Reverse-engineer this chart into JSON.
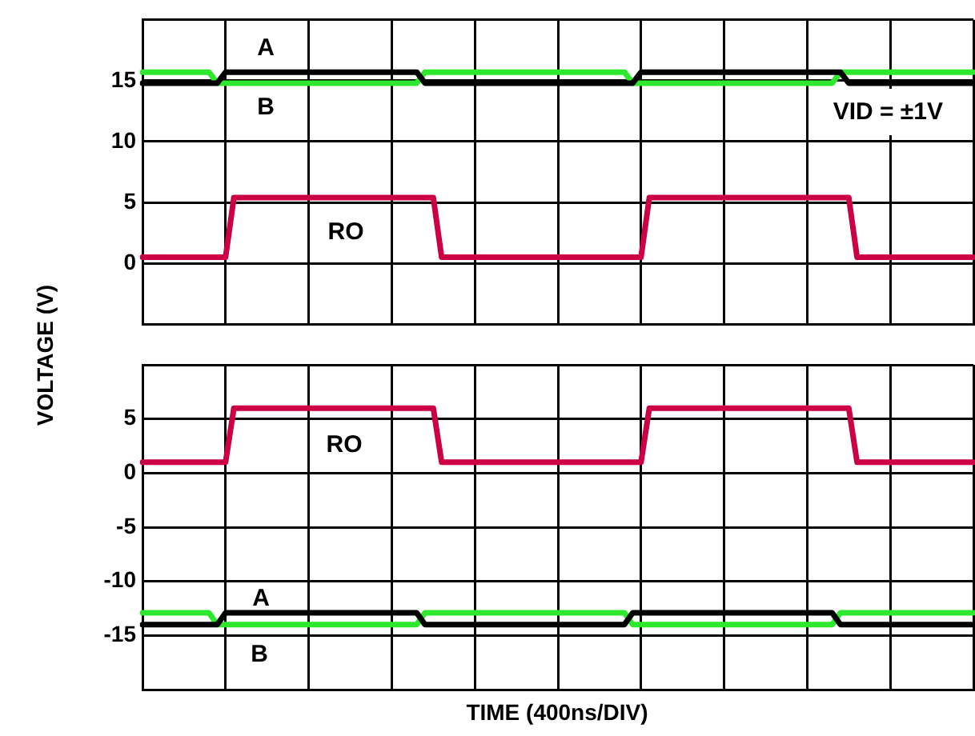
{
  "chart_data": [
    {
      "type": "line",
      "ylabel": "VOLTAGE (V)",
      "categories": [
        null,
        null,
        null,
        null,
        null,
        null,
        null,
        null,
        null,
        null,
        null,
        null,
        null,
        null,
        null,
        null,
        null,
        null,
        null,
        null,
        null,
        null,
        null,
        null,
        null,
        null,
        null,
        null,
        null,
        null,
        null,
        null,
        null,
        null,
        null,
        null,
        null,
        null,
        null,
        null,
        null,
        null,
        null,
        null,
        null,
        null,
        null,
        null,
        null,
        null,
        null,
        null,
        null,
        null,
        null,
        null,
        null,
        null,
        null,
        null,
        null,
        null,
        null,
        null,
        null,
        null,
        null,
        null,
        null,
        null,
        null,
        null,
        null,
        null,
        null,
        null,
        null,
        null,
        null,
        null,
        null,
        null,
        null,
        null,
        null,
        null,
        null,
        null,
        null,
        null,
        null,
        null,
        null,
        null,
        null,
        null,
        null,
        null,
        null,
        null,
        null
      ],
      "ylim": [
        -5,
        20
      ],
      "yticks": [
        {
          "value": -5,
          "label": null
        },
        0,
        5,
        10,
        15,
        {
          "value": 20,
          "label": null
        }
      ],
      "grid": true,
      "tick_labels": "y",
      "legend": false,
      "marker": "none",
      "line_style": "solid",
      "series": [
        {
          "color": "#000000",
          "values": [
            14.8,
            14.8,
            14.8,
            14.8,
            14.8,
            14.8,
            14.8,
            14.8,
            14.8,
            14.8,
            15.7,
            15.7,
            15.7,
            15.7,
            15.7,
            15.7,
            15.7,
            15.7,
            15.7,
            15.7,
            15.7,
            15.7,
            15.7,
            15.7,
            15.7,
            15.7,
            15.7,
            15.7,
            15.7,
            15.7,
            15.7,
            15.7,
            15.7,
            15.7,
            14.8,
            14.8,
            14.8,
            14.8,
            14.8,
            14.8,
            14.8,
            14.8,
            14.8,
            14.8,
            14.8,
            14.8,
            14.8,
            14.8,
            14.8,
            14.8,
            14.8,
            14.8,
            14.8,
            14.8,
            14.8,
            14.8,
            14.8,
            14.8,
            14.8,
            14.8,
            15.7,
            15.7,
            15.7,
            15.7,
            15.7,
            15.7,
            15.7,
            15.7,
            15.7,
            15.7,
            15.7,
            15.7,
            15.7,
            15.7,
            15.7,
            15.7,
            15.7,
            15.7,
            15.7,
            15.7,
            15.7,
            15.7,
            15.7,
            15.7,
            15.7,
            14.8,
            14.8,
            14.8,
            14.8,
            14.8,
            14.8,
            14.8,
            14.8,
            14.8,
            14.8,
            14.8,
            14.8,
            14.8,
            14.8,
            14.8,
            14.8
          ]
        },
        {
          "color": "#2ee82e",
          "values": [
            15.7,
            15.7,
            15.7,
            15.7,
            15.7,
            15.7,
            15.7,
            15.7,
            15.7,
            14.8,
            14.8,
            14.8,
            14.8,
            14.8,
            14.8,
            14.8,
            14.8,
            14.8,
            14.8,
            14.8,
            14.8,
            14.8,
            14.8,
            14.8,
            14.8,
            14.8,
            14.8,
            14.8,
            14.8,
            14.8,
            14.8,
            14.8,
            14.8,
            14.8,
            15.7,
            15.7,
            15.7,
            15.7,
            15.7,
            15.7,
            15.7,
            15.7,
            15.7,
            15.7,
            15.7,
            15.7,
            15.7,
            15.7,
            15.7,
            15.7,
            15.7,
            15.7,
            15.7,
            15.7,
            15.7,
            15.7,
            15.7,
            15.7,
            15.7,
            14.8,
            14.8,
            14.8,
            14.8,
            14.8,
            14.8,
            14.8,
            14.8,
            14.8,
            14.8,
            14.8,
            14.8,
            14.8,
            14.8,
            14.8,
            14.8,
            14.8,
            14.8,
            14.8,
            14.8,
            14.8,
            14.8,
            14.8,
            14.8,
            14.8,
            15.7,
            15.7,
            15.7,
            15.7,
            15.7,
            15.7,
            15.7,
            15.7,
            15.7,
            15.7,
            15.7,
            15.7,
            15.7,
            15.7,
            15.7,
            15.7,
            15.7
          ]
        },
        {
          "color": "#cc0044",
          "values": [
            0.5,
            0.5,
            0.5,
            0.5,
            0.5,
            0.5,
            0.5,
            0.5,
            0.5,
            0.5,
            0.5,
            5.4,
            5.4,
            5.4,
            5.4,
            5.4,
            5.4,
            5.4,
            5.4,
            5.4,
            5.4,
            5.4,
            5.4,
            5.4,
            5.4,
            5.4,
            5.4,
            5.4,
            5.4,
            5.4,
            5.4,
            5.4,
            5.4,
            5.4,
            5.4,
            5.4,
            0.5,
            0.5,
            0.5,
            0.5,
            0.5,
            0.5,
            0.5,
            0.5,
            0.5,
            0.5,
            0.5,
            0.5,
            0.5,
            0.5,
            0.5,
            0.5,
            0.5,
            0.5,
            0.5,
            0.5,
            0.5,
            0.5,
            0.5,
            0.5,
            0.5,
            5.4,
            5.4,
            5.4,
            5.4,
            5.4,
            5.4,
            5.4,
            5.4,
            5.4,
            5.4,
            5.4,
            5.4,
            5.4,
            5.4,
            5.4,
            5.4,
            5.4,
            5.4,
            5.4,
            5.4,
            5.4,
            5.4,
            5.4,
            5.4,
            5.4,
            0.5,
            0.5,
            0.5,
            0.5,
            0.5,
            0.5,
            0.5,
            0.5,
            0.5,
            0.5,
            0.5,
            0.5,
            0.5,
            0.5,
            0.5
          ]
        }
      ],
      "annotations": [
        "A",
        "B",
        "RO",
        "VID = ±1V"
      ]
    },
    {
      "type": "line",
      "xlabel": "TIME (400ns/DIV)",
      "categories": [
        null,
        null,
        null,
        null,
        null,
        null,
        null,
        null,
        null,
        null,
        null,
        null,
        null,
        null,
        null,
        null,
        null,
        null,
        null,
        null,
        null,
        null,
        null,
        null,
        null,
        null,
        null,
        null,
        null,
        null,
        null,
        null,
        null,
        null,
        null,
        null,
        null,
        null,
        null,
        null,
        null,
        null,
        null,
        null,
        null,
        null,
        null,
        null,
        null,
        null,
        null,
        null,
        null,
        null,
        null,
        null,
        null,
        null,
        null,
        null,
        null,
        null,
        null,
        null,
        null,
        null,
        null,
        null,
        null,
        null,
        null,
        null,
        null,
        null,
        null,
        null,
        null,
        null,
        null,
        null,
        null,
        null,
        null,
        null,
        null,
        null,
        null,
        null,
        null,
        null,
        null,
        null,
        null,
        null,
        null,
        null,
        null,
        null,
        null,
        null,
        null
      ],
      "ylim": [
        -20,
        10
      ],
      "yticks": [
        {
          "value": -20,
          "label": null
        },
        -15,
        -10,
        -5,
        0,
        5,
        {
          "value": 10,
          "label": null
        }
      ],
      "grid": true,
      "tick_labels": "y",
      "legend": false,
      "marker": "none",
      "line_style": "solid",
      "series": [
        {
          "color": "#000000",
          "values": [
            -14,
            -14,
            -14,
            -14,
            -14,
            -14,
            -14,
            -14,
            -14,
            -14,
            -12.9,
            -12.9,
            -12.9,
            -12.9,
            -12.9,
            -12.9,
            -12.9,
            -12.9,
            -12.9,
            -12.9,
            -12.9,
            -12.9,
            -12.9,
            -12.9,
            -12.9,
            -12.9,
            -12.9,
            -12.9,
            -12.9,
            -12.9,
            -12.9,
            -12.9,
            -12.9,
            -12.9,
            -14,
            -14,
            -14,
            -14,
            -14,
            -14,
            -14,
            -14,
            -14,
            -14,
            -14,
            -14,
            -14,
            -14,
            -14,
            -14,
            -14,
            -14,
            -14,
            -14,
            -14,
            -14,
            -14,
            -14,
            -14,
            -12.9,
            -12.9,
            -12.9,
            -12.9,
            -12.9,
            -12.9,
            -12.9,
            -12.9,
            -12.9,
            -12.9,
            -12.9,
            -12.9,
            -12.9,
            -12.9,
            -12.9,
            -12.9,
            -12.9,
            -12.9,
            -12.9,
            -12.9,
            -12.9,
            -12.9,
            -12.9,
            -12.9,
            -12.9,
            -14,
            -14,
            -14,
            -14,
            -14,
            -14,
            -14,
            -14,
            -14,
            -14,
            -14,
            -14,
            -14,
            -14,
            -14,
            -14,
            -14
          ]
        },
        {
          "color": "#2ee82e",
          "values": [
            -12.9,
            -12.9,
            -12.9,
            -12.9,
            -12.9,
            -12.9,
            -12.9,
            -12.9,
            -12.9,
            -14,
            -14,
            -14,
            -14,
            -14,
            -14,
            -14,
            -14,
            -14,
            -14,
            -14,
            -14,
            -14,
            -14,
            -14,
            -14,
            -14,
            -14,
            -14,
            -14,
            -14,
            -14,
            -14,
            -14,
            -14,
            -12.9,
            -12.9,
            -12.9,
            -12.9,
            -12.9,
            -12.9,
            -12.9,
            -12.9,
            -12.9,
            -12.9,
            -12.9,
            -12.9,
            -12.9,
            -12.9,
            -12.9,
            -12.9,
            -12.9,
            -12.9,
            -12.9,
            -12.9,
            -12.9,
            -12.9,
            -12.9,
            -12.9,
            -12.9,
            -14,
            -14,
            -14,
            -14,
            -14,
            -14,
            -14,
            -14,
            -14,
            -14,
            -14,
            -14,
            -14,
            -14,
            -14,
            -14,
            -14,
            -14,
            -14,
            -14,
            -14,
            -14,
            -14,
            -14,
            -14,
            -12.9,
            -12.9,
            -12.9,
            -12.9,
            -12.9,
            -12.9,
            -12.9,
            -12.9,
            -12.9,
            -12.9,
            -12.9,
            -12.9,
            -12.9,
            -12.9,
            -12.9,
            -12.9,
            -12.9
          ]
        },
        {
          "color": "#cc0044",
          "values": [
            1,
            1,
            1,
            1,
            1,
            1,
            1,
            1,
            1,
            1,
            1,
            6,
            6,
            6,
            6,
            6,
            6,
            6,
            6,
            6,
            6,
            6,
            6,
            6,
            6,
            6,
            6,
            6,
            6,
            6,
            6,
            6,
            6,
            6,
            6,
            6,
            1,
            1,
            1,
            1,
            1,
            1,
            1,
            1,
            1,
            1,
            1,
            1,
            1,
            1,
            1,
            1,
            1,
            1,
            1,
            1,
            1,
            1,
            1,
            1,
            1,
            6,
            6,
            6,
            6,
            6,
            6,
            6,
            6,
            6,
            6,
            6,
            6,
            6,
            6,
            6,
            6,
            6,
            6,
            6,
            6,
            6,
            6,
            6,
            6,
            6,
            1,
            1,
            1,
            1,
            1,
            1,
            1,
            1,
            1,
            1,
            1,
            1,
            1,
            1,
            1
          ]
        }
      ],
      "annotations": [
        "A",
        "B",
        "RO"
      ]
    }
  ]
}
